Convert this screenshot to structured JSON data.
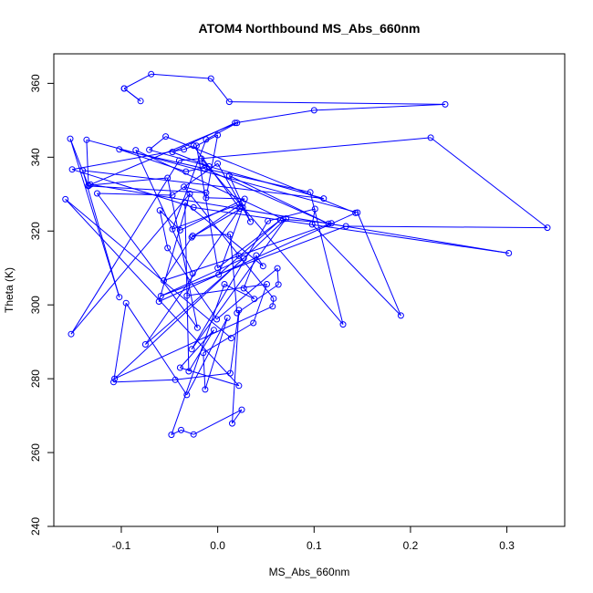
{
  "chart_data": {
    "type": "line",
    "title": "ATOM4 Northbound MS_Abs_660nm",
    "xlabel": "MS_Abs_660nm",
    "ylabel": "Theta (K)",
    "xlim": [
      -0.17,
      0.36
    ],
    "ylim": [
      240,
      368
    ],
    "xticks": [
      -0.1,
      0.0,
      0.1,
      0.2,
      0.3
    ],
    "xtick_labels": [
      "-0.1",
      "0.0",
      "0.1",
      "0.2",
      "0.3"
    ],
    "yticks": [
      240,
      260,
      280,
      300,
      320,
      340,
      360
    ],
    "ytick_labels": [
      "240",
      "260",
      "280",
      "300",
      "320",
      "340",
      "360"
    ],
    "grid": false,
    "legend": "none",
    "series_color": "#0000ff",
    "marker": "open-circle",
    "series": [
      {
        "x": [
          -0.097,
          -0.08,
          -0.097,
          -0.069,
          -0.007,
          0.012,
          0.236,
          0.1,
          0.018,
          -0.047,
          -0.009,
          -0.033,
          -0.102,
          0.096,
          0.13,
          -0.017,
          -0.014,
          0.115,
          0.012,
          0.034,
          0.0,
          -0.047,
          -0.125,
          -0.021,
          -0.052,
          -0.134,
          -0.136,
          0.145,
          0.19,
          0.098,
          0.101,
          0.052,
          -0.027,
          0.071,
          -0.107,
          0.057,
          0.058,
          -0.035,
          -0.012,
          -0.134,
          -0.153,
          -0.102,
          -0.14,
          0.11,
          -0.071,
          -0.054,
          0.143,
          -0.061,
          -0.029,
          -0.152,
          -0.04,
          0.221,
          0.342,
          0.133,
          -0.059,
          0.027,
          -0.075,
          0.023,
          -0.025,
          -0.035,
          -0.151,
          -0.025,
          0.302,
          -0.132,
          0.02,
          -0.012,
          -0.047,
          0.026,
          -0.027,
          0.026,
          0.001,
          0.065,
          0.0,
          -0.022,
          0.0,
          -0.012,
          0.028,
          -0.039,
          -0.06,
          -0.052,
          -0.001,
          0.062,
          0.063,
          0.02,
          0.013,
          -0.026,
          -0.056,
          0.022,
          0.118,
          0.068,
          -0.085,
          -0.026,
          -0.032,
          0.051,
          0.037,
          -0.015,
          -0.013,
          0.01,
          -0.032,
          -0.095,
          -0.108,
          -0.044,
          0.013,
          0.022,
          0.015,
          0.025,
          -0.025,
          -0.038,
          -0.048,
          0.007,
          0.038,
          0.027,
          0.04,
          0.047,
          -0.034,
          -0.03,
          -0.004,
          -0.039,
          0.022,
          -0.158,
          0.014
        ],
        "y": [
          358.6,
          355.2,
          358.6,
          362.5,
          361.3,
          355.0,
          354.3,
          352.7,
          349.3,
          341.4,
          337.5,
          336.1,
          342.1,
          330.5,
          294.7,
          339.6,
          337.0,
          322.0,
          335.0,
          322.5,
          338.3,
          329.7,
          330.2,
          293.8,
          334.4,
          332.4,
          344.7,
          325.0,
          297.1,
          321.8,
          326.0,
          322.7,
          288.0,
          323.4,
          280.0,
          299.6,
          301.7,
          332.0,
          330.4,
          332.2,
          345.0,
          302.1,
          336.4,
          328.8,
          342.0,
          345.6,
          324.9,
          300.9,
          330.1,
          292.1,
          339.1,
          345.3,
          320.9,
          321.3,
          302.4,
          312.6,
          289.3,
          326.1,
          343.1,
          342.1,
          336.7,
          326.4,
          314.0,
          332.6,
          349.3,
          344.8,
          320.5,
          327.6,
          318.3,
          326.4,
          308.2,
          323.0,
          310.0,
          343.1,
          346.0,
          329.0,
          328.7,
          320.2,
          325.6,
          315.4,
          296.1,
          309.9,
          305.5,
          297.8,
          319.1,
          318.7,
          306.6,
          313.3,
          322.1,
          323.2,
          341.9,
          308.5,
          302.5,
          305.6,
          295.1,
          287.0,
          277.1,
          296.5,
          275.6,
          300.5,
          279.1,
          279.7,
          281.5,
          298.6,
          267.9,
          271.6,
          264.9,
          266.1,
          264.8,
          305.6,
          301.6,
          304.5,
          313.4,
          310.5,
          327.7,
          282.0,
          293.2,
          283.0,
          278.1,
          328.6,
          291.0
        ]
      }
    ]
  }
}
